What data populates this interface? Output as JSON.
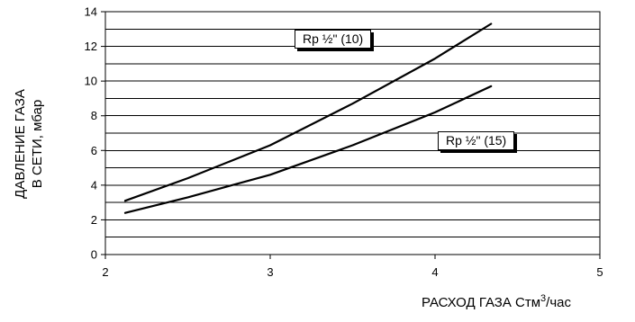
{
  "chart_data": {
    "type": "line",
    "xlim": [
      2,
      5
    ],
    "ylim": [
      0,
      14
    ],
    "x_ticks": [
      "2",
      "3",
      "4",
      "5"
    ],
    "y_ticks": [
      "0",
      "2",
      "4",
      "6",
      "8",
      "10",
      "12",
      "14"
    ],
    "grid": true,
    "ylabel_line1": "ДАВЛЕНИЕ ГАЗА",
    "ylabel_line2": "В СЕТИ, мбар",
    "xlabel_main": "РАСХОД ГАЗА Стм",
    "xlabel_sup": "3",
    "xlabel_tail": "/час",
    "series": [
      {
        "name": "Rp ½\" (10)",
        "x": [
          2.12,
          2.5,
          3.0,
          3.5,
          4.0,
          4.34
        ],
        "y": [
          3.1,
          4.4,
          6.3,
          8.7,
          11.3,
          13.3
        ]
      },
      {
        "name": "Rp ½\" (15)",
        "x": [
          2.12,
          2.5,
          3.0,
          3.5,
          4.0,
          4.34
        ],
        "y": [
          2.4,
          3.3,
          4.6,
          6.3,
          8.2,
          9.7
        ]
      }
    ],
    "colors": {
      "line": "#000000",
      "grid": "#000000",
      "background": "#ffffff"
    }
  }
}
